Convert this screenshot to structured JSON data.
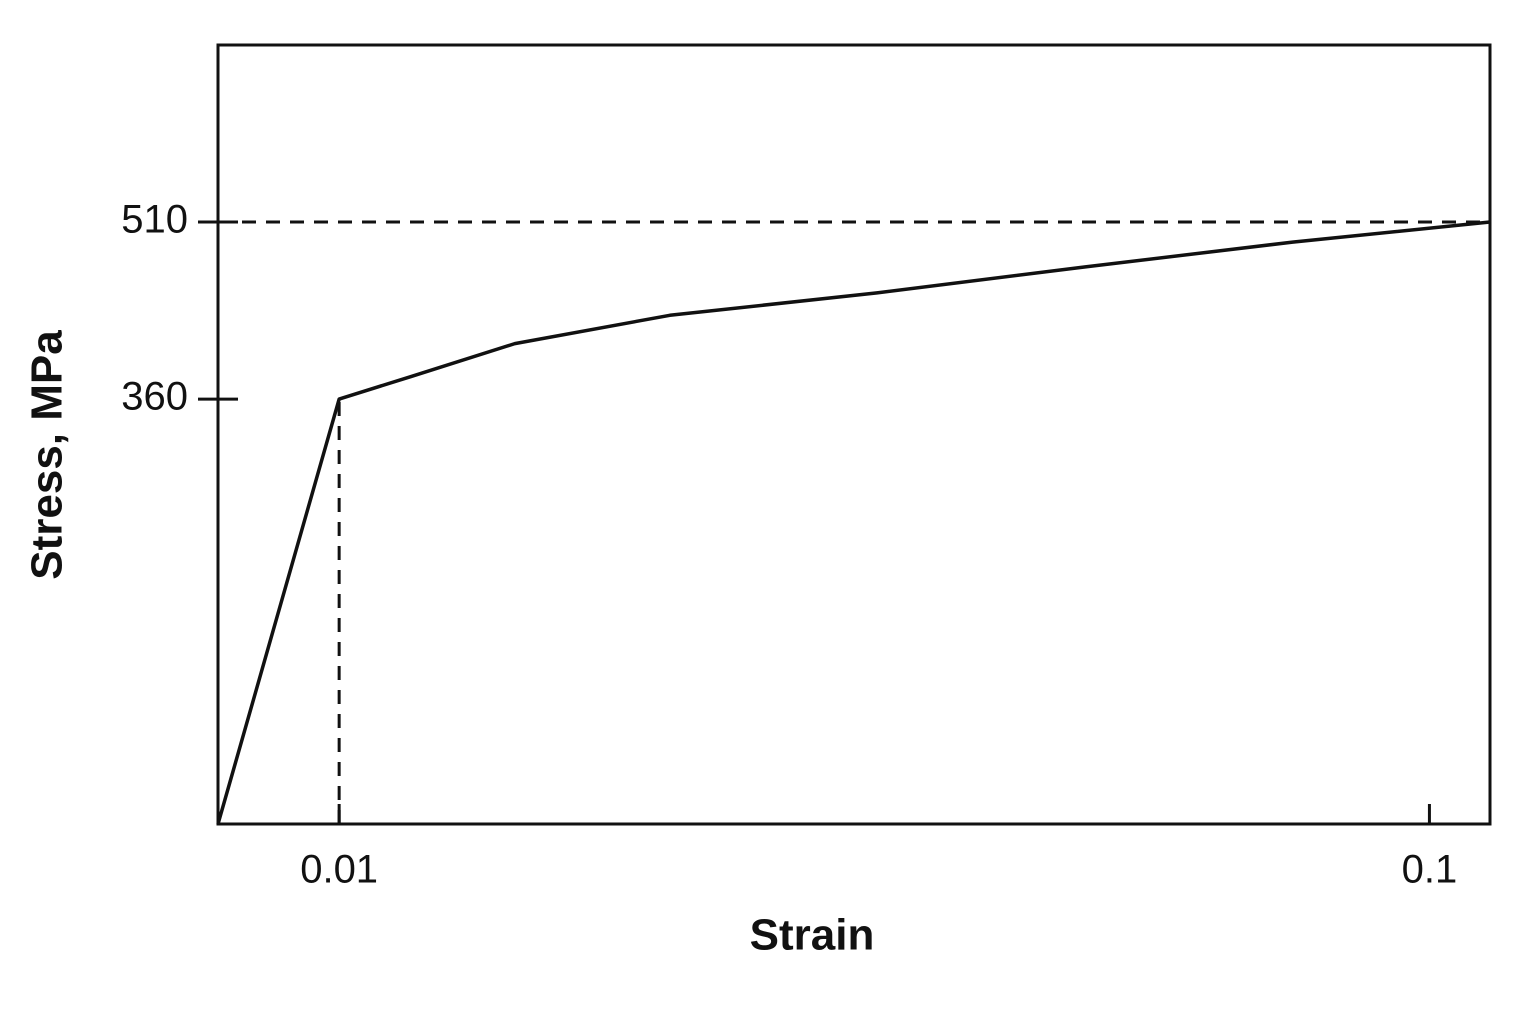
{
  "chart_data": {
    "type": "line",
    "x_label": "Strain",
    "y_label": "Stress, MPa",
    "series": [
      {
        "color": "#111111",
        "x": [
          0,
          0.01,
          0.0159,
          0.0245,
          0.0373,
          0.0544,
          0.0716,
          0.0887,
          0.105
        ],
        "values": [
          0,
          360,
          379,
          407,
          431,
          450,
          472,
          493,
          510
        ]
      }
    ],
    "xlim": [
      0,
      0.105
    ],
    "ylim": [
      0,
      660
    ],
    "xticks": [
      0.01,
      0.1
    ],
    "yticks": [
      360,
      510
    ],
    "grid": false
  }
}
